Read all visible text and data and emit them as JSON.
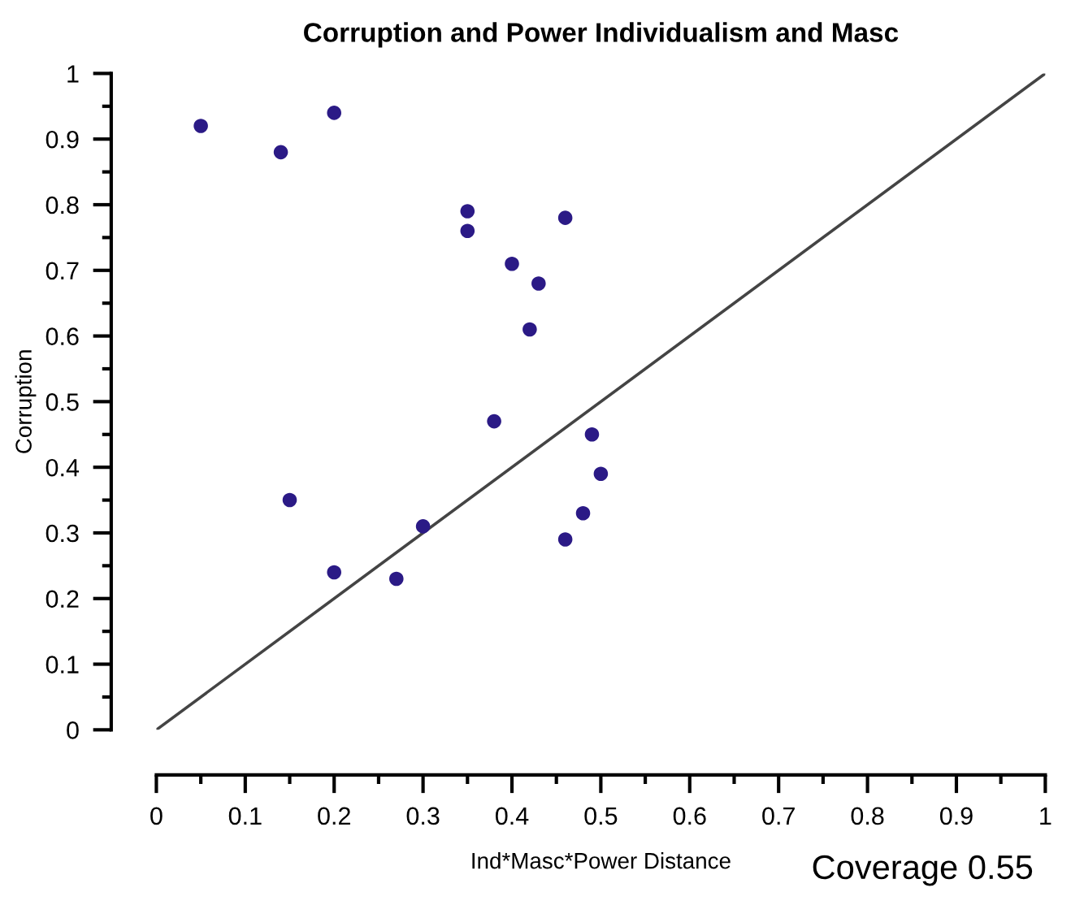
{
  "chart_data": {
    "type": "scatter",
    "title": "Corruption and Power Individualism and Masc",
    "xlabel": "Ind*Masc*Power Distance",
    "ylabel": "Corruption",
    "xlim": [
      0,
      1
    ],
    "ylim": [
      0,
      1
    ],
    "xticks": [
      0,
      0.1,
      0.2,
      0.3,
      0.4,
      0.5,
      0.6,
      0.7,
      0.8,
      0.9,
      1
    ],
    "yticks": [
      0,
      0.1,
      0.2,
      0.3,
      0.4,
      0.5,
      0.6,
      0.7,
      0.8,
      0.9,
      1
    ],
    "grid": false,
    "series": [
      {
        "marker": "circle",
        "color": "#2b1a86",
        "x": [
          0.05,
          0.14,
          0.2,
          0.35,
          0.35,
          0.4,
          0.43,
          0.42,
          0.46,
          0.38,
          0.49,
          0.5,
          0.48,
          0.46,
          0.15,
          0.2,
          0.27,
          0.3
        ],
        "values": [
          0.92,
          0.88,
          0.94,
          0.79,
          0.76,
          0.71,
          0.68,
          0.61,
          0.78,
          0.47,
          0.45,
          0.39,
          0.33,
          0.29,
          0.35,
          0.24,
          0.23,
          0.31
        ]
      },
      {
        "type": "line",
        "color": "#444444",
        "x": [
          0,
          1
        ],
        "values": [
          0,
          1
        ]
      }
    ],
    "annotations": [
      "Coverage 0.55"
    ]
  }
}
